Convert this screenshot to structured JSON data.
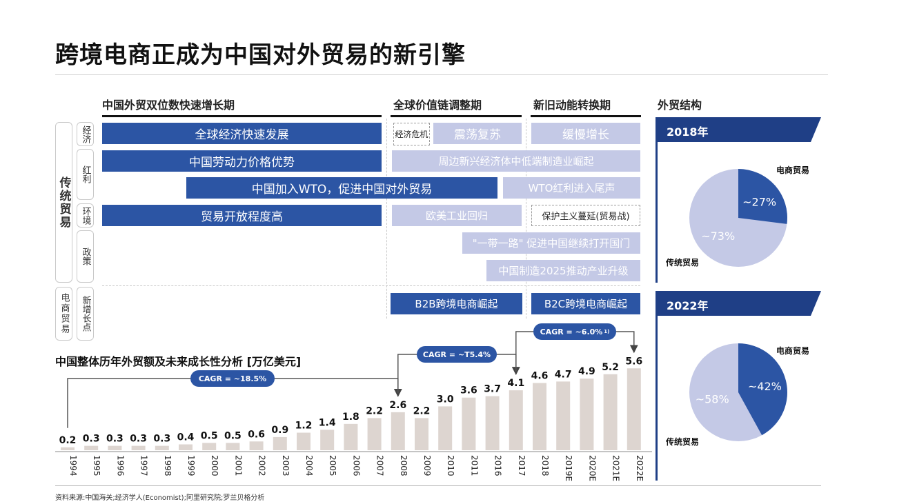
{
  "page": {
    "title": "跨境电商正成为中国对外贸易的新引擎"
  },
  "phases": [
    "中国外贸双位数快速增长期",
    "全球价值链调整期",
    "新旧动能转换期"
  ],
  "side": {
    "traditional": "传统贸易",
    "ecommerce": "电商贸易",
    "rows": [
      "经济",
      "红利",
      "环境",
      "政策",
      "新增长点"
    ]
  },
  "bars": {
    "r1_a": "全球经济快速发展",
    "r1_b": "经济危机",
    "r1_c": "震荡复苏",
    "r1_d": "缓慢增长",
    "r2_a": "中国劳动力价格优势",
    "r2_b": "周边新兴经济体中低端制造业崛起",
    "r3_a": "中国加入WTO，促进中国对外贸易",
    "r3_b": "WTO红利进入尾声",
    "r4_a": "贸易开放程度高",
    "r4_b": "欧美工业回归",
    "r4_c": "保护主义蔓延(贸易战)",
    "r5_a": "\"一带一路\" 促进中国继续打开国门",
    "r6_a": "中国制造2025推动产业升级",
    "r7_a": "B2B跨境电商崛起",
    "r7_b": "B2C跨境电商崛起"
  },
  "cagr": [
    "CAGR = ~18.5%",
    "CAGR = ~T5.4%",
    "CAGR = ~6.0%",
    "1)"
  ],
  "right": {
    "title": "外贸结构",
    "y2018": "2018年",
    "y2022": "2022年",
    "ecom_label": "电商贸易",
    "trad_label": "传统贸易"
  },
  "pies": [
    {
      "year": "2018年",
      "ecommerce": 27,
      "traditional": 73,
      "ecom_text": "~27%",
      "trad_text": "~73%"
    },
    {
      "year": "2022年",
      "ecommerce": 42,
      "traditional": 58,
      "ecom_text": "~42%",
      "trad_text": "~58%"
    }
  ],
  "colors": {
    "dark": "#2c55a4",
    "light": "#c4c9e6",
    "bar": "#ddd5d0",
    "banner": "#1f3f86"
  },
  "source": "资料来源:中国海关;经济学人(Economist);阿里研究院;罗兰贝格分析",
  "chart_data": {
    "type": "bar",
    "title": "中国整体历年外贸额及未来成长性分析 [万亿美元]",
    "categories": [
      "1994",
      "1995",
      "1996",
      "1997",
      "1998",
      "1999",
      "2000",
      "2001",
      "2002",
      "2003",
      "2004",
      "2005",
      "2006",
      "2007",
      "2008",
      "2009",
      "2010",
      "2011",
      "2016",
      "2017",
      "2018",
      "2019E",
      "2020E",
      "2021E",
      "2022E"
    ],
    "values": [
      0.2,
      0.3,
      0.3,
      0.3,
      0.3,
      0.4,
      0.5,
      0.5,
      0.6,
      0.9,
      1.2,
      1.4,
      1.8,
      2.2,
      2.6,
      2.2,
      3.0,
      3.6,
      3.7,
      4.1,
      4.6,
      4.7,
      4.9,
      5.2,
      5.6
    ],
    "labels": [
      "0.2",
      "0.3",
      "0.3",
      "0.3",
      "0.3",
      "0.4",
      "0.5",
      "0.5",
      "0.6",
      "0.9",
      "1.2",
      "1.4",
      "1.8",
      "2.2",
      "2.6",
      "2.2",
      "3.0",
      "3.6",
      "3.7",
      "4.1",
      "4.6",
      "4.7",
      "4.9",
      "5.2",
      "5.6"
    ],
    "xlabel": "",
    "ylabel": "",
    "ylim": [
      0,
      6
    ]
  }
}
